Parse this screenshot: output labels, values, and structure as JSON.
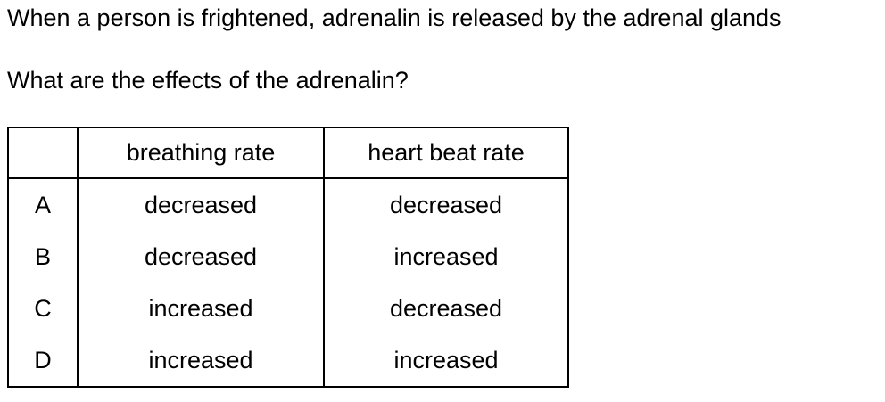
{
  "question": {
    "intro": "When a person is frightened, adrenalin is released by the adrenal glands",
    "prompt": "What are the effects of the adrenalin?"
  },
  "table": {
    "headers": [
      "",
      "breathing rate",
      "heart beat rate"
    ],
    "rows": [
      {
        "letter": "A",
        "breathing_rate": "decreased",
        "heart_beat_rate": "decreased"
      },
      {
        "letter": "B",
        "breathing_rate": "decreased",
        "heart_beat_rate": "increased"
      },
      {
        "letter": "C",
        "breathing_rate": "increased",
        "heart_beat_rate": "decreased"
      },
      {
        "letter": "D",
        "breathing_rate": "increased",
        "heart_beat_rate": "increased"
      }
    ]
  }
}
